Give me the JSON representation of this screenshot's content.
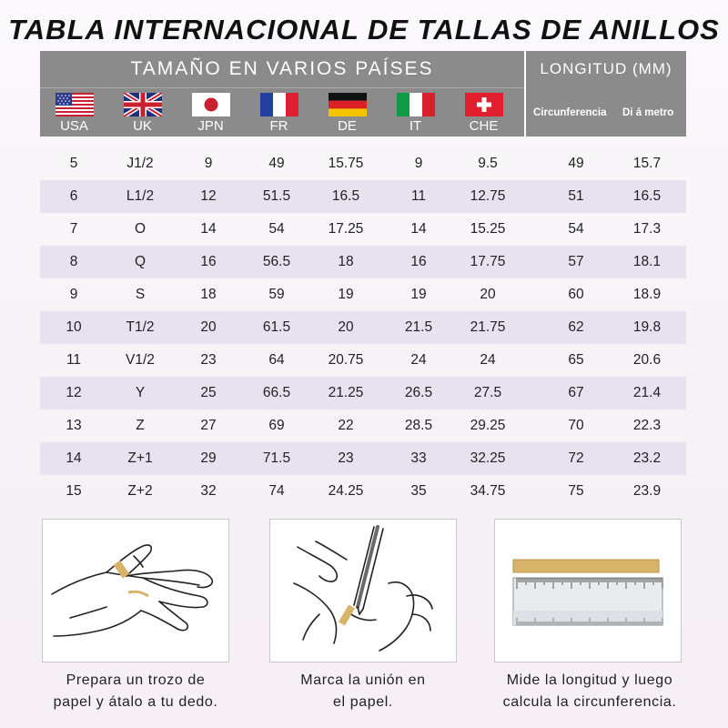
{
  "title": "TABLA INTERNACIONAL DE TALLAS DE ANILLOS",
  "header": {
    "countries_heading": "TAMAÑO EN VARIOS PAÍSES",
    "length_heading": "LONGITUD (MM)",
    "countries": [
      {
        "code": "USA",
        "flag": "us-flag-icon"
      },
      {
        "code": "UK",
        "flag": "uk-flag-icon"
      },
      {
        "code": "JPN",
        "flag": "japan-flag-icon"
      },
      {
        "code": "FR",
        "flag": "france-flag-icon"
      },
      {
        "code": "DE",
        "flag": "germany-flag-icon"
      },
      {
        "code": "IT",
        "flag": "italy-flag-icon"
      },
      {
        "code": "CHE",
        "flag": "switzerland-flag-icon"
      }
    ],
    "circumference_label": "Circunferencia",
    "diameter_label": "Di á metro"
  },
  "rows": [
    [
      "5",
      "J1/2",
      "9",
      "49",
      "15.75",
      "9",
      "9.5",
      "49",
      "15.7"
    ],
    [
      "6",
      "L1/2",
      "12",
      "51.5",
      "16.5",
      "11",
      "12.75",
      "51",
      "16.5"
    ],
    [
      "7",
      "O",
      "14",
      "54",
      "17.25",
      "14",
      "15.25",
      "54",
      "17.3"
    ],
    [
      "8",
      "Q",
      "16",
      "56.5",
      "18",
      "16",
      "17.75",
      "57",
      "18.1"
    ],
    [
      "9",
      "S",
      "18",
      "59",
      "19",
      "19",
      "20",
      "60",
      "18.9"
    ],
    [
      "10",
      "T1/2",
      "20",
      "61.5",
      "20",
      "21.5",
      "21.75",
      "62",
      "19.8"
    ],
    [
      "11",
      "V1/2",
      "23",
      "64",
      "20.75",
      "24",
      "24",
      "65",
      "20.6"
    ],
    [
      "12",
      "Y",
      "25",
      "66.5",
      "21.25",
      "26.5",
      "27.5",
      "67",
      "21.4"
    ],
    [
      "13",
      "Z",
      "27",
      "69",
      "22",
      "28.5",
      "29.25",
      "70",
      "22.3"
    ],
    [
      "14",
      "Z+1",
      "29",
      "71.5",
      "23",
      "33",
      "32.25",
      "72",
      "23.2"
    ],
    [
      "15",
      "Z+2",
      "32",
      "74",
      "24.25",
      "35",
      "34.75",
      "75",
      "23.9"
    ]
  ],
  "steps": [
    {
      "illustration": "hand-paper-wrap-illustration",
      "line1": "Prepara un trozo de",
      "line2": "papel y átalo a tu dedo."
    },
    {
      "illustration": "mark-paper-illustration",
      "line1": "Marca la unión en",
      "line2": "el papel."
    },
    {
      "illustration": "ruler-measure-illustration",
      "line1": "Mide la longitud y luego",
      "line2": "calcula la circunferencia."
    }
  ],
  "colors": {
    "header_bg": "#8b8b8b",
    "row_shade": "#e7e2f0",
    "paper_strip": "#d8b46a"
  }
}
